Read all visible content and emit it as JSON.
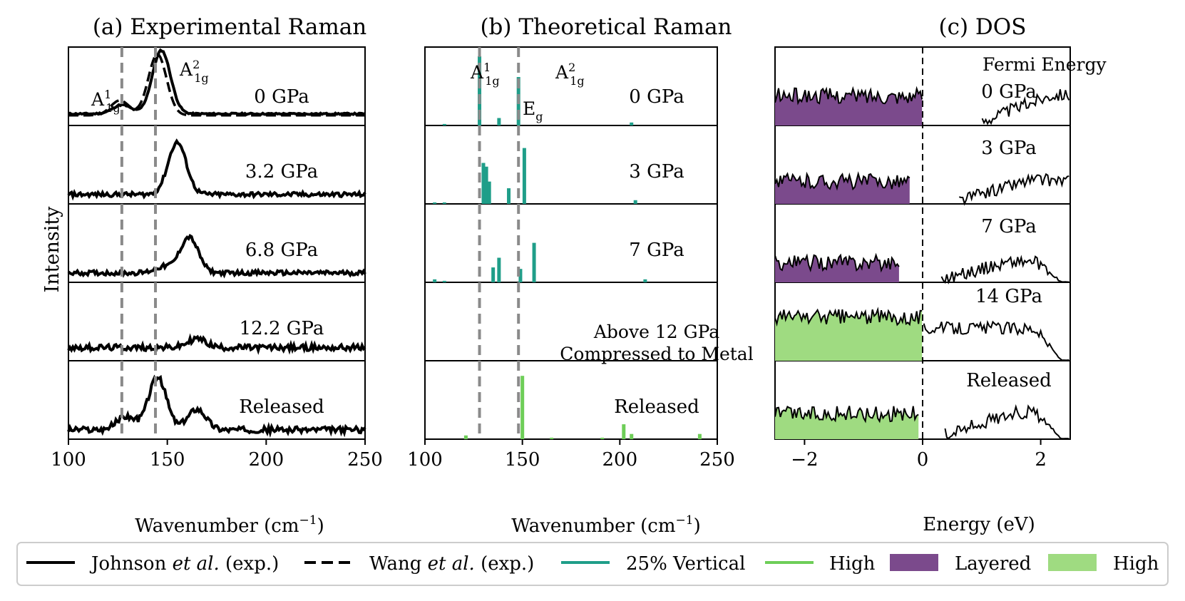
{
  "panels": {
    "a": {
      "title": "(a) Experimental Raman"
    },
    "b": {
      "title": "(b) Theoretical Raman"
    },
    "c": {
      "title": "(c) DOS"
    }
  },
  "axes": {
    "y_label": "Intensity",
    "raman_x_label": "Wavenumber (cm",
    "raman_x_label_sup": "−1",
    "raman_x_label_end": ")",
    "dos_x_label": "Energy (eV)",
    "raman_ticks": [
      "100",
      "150",
      "200",
      "250"
    ],
    "dos_ticks": [
      "−2",
      "0",
      "2"
    ]
  },
  "annotations": {
    "a1g_base": "A",
    "a1g_sup": "1",
    "a2g_sup": "2",
    "a_sub": "1g",
    "eg_base": "E",
    "eg_sub": "g",
    "fermi": "Fermi Energy",
    "metal_line1": "Above 12 GPa",
    "metal_line2": "Compressed to Metal"
  },
  "row_labels": {
    "a": [
      "0 GPa",
      "3.2 GPa",
      "6.8 GPa",
      "12.2 GPa",
      "Released"
    ],
    "b": [
      "0 GPa",
      "3 GPa",
      "7 GPa",
      "",
      "Released"
    ],
    "c": [
      "0 GPa",
      "3 GPa",
      "7 GPa",
      "14 GPa",
      "Released"
    ]
  },
  "legend": {
    "johnson_name": "Johnson ",
    "johnson_etal": "et al.",
    "johnson_tail": " (exp.)",
    "wang_name": "Wang ",
    "wang_etal": "et al.",
    "wang_tail": " (exp.)",
    "vertical": "25% Vertical",
    "high_line": "High",
    "layered": "Layered",
    "high_fill": "High"
  },
  "colors": {
    "vertical": "#1f9e89",
    "high": "#6ece58",
    "layered": "#7b4a8c",
    "high_fill": "#9fdb81",
    "ref_line": "#8a8a8a"
  },
  "chart_data": [
    {
      "type": "line",
      "panel": "a",
      "xlabel": "Wavenumber (cm−1)",
      "ylabel": "Intensity",
      "xlim": [
        100,
        250
      ],
      "reference_lines_x": [
        127,
        144
      ],
      "series": [
        {
          "name": "Johnson et al. (exp.)",
          "condition": "0 GPa",
          "peaks": [
            [
              127,
              0.12
            ],
            [
              147,
              0.85
            ]
          ],
          "noise": 0.01,
          "base": 0.08
        },
        {
          "name": "Wang et al. (exp.)",
          "condition": "0 GPa",
          "peaks": [
            [
              126,
              0.2
            ],
            [
              145,
              0.82
            ]
          ],
          "noise": 0.0,
          "base": 0.06
        },
        {
          "name": "Johnson et al. (exp.)",
          "condition": "3.2 GPa",
          "peaks": [
            [
              155,
              0.7
            ]
          ],
          "noise": 0.03,
          "base": 0.05
        },
        {
          "name": "Johnson et al. (exp.)",
          "condition": "6.8 GPa",
          "peaks": [
            [
              148,
              0.08
            ],
            [
              161,
              0.48
            ]
          ],
          "noise": 0.03,
          "base": 0.05
        },
        {
          "name": "Johnson et al. (exp.)",
          "condition": "12.2 GPa",
          "peaks": [
            [
              165,
              0.12
            ]
          ],
          "noise": 0.04,
          "base": 0.1
        },
        {
          "name": "Johnson et al. (exp.)",
          "condition": "Released",
          "peaks": [
            [
              129,
              0.18
            ],
            [
              145,
              0.7
            ],
            [
              165,
              0.28
            ]
          ],
          "noise": 0.04,
          "base": 0.05
        }
      ]
    },
    {
      "type": "bar",
      "panel": "b",
      "xlabel": "Wavenumber (cm−1)",
      "xlim": [
        100,
        250
      ],
      "reference_lines_x": [
        128,
        148
      ],
      "series": [
        {
          "name": "25% Vertical",
          "condition": "0 GPa",
          "sticks": [
            [
              110,
              0.02
            ],
            [
              128,
              0.93
            ],
            [
              138,
              0.1
            ],
            [
              148,
              0.65
            ],
            [
              206,
              0.04
            ]
          ]
        },
        {
          "name": "25% Vertical",
          "condition": "3 GPa",
          "sticks": [
            [
              105,
              0.02
            ],
            [
              110,
              0.02
            ],
            [
              130,
              0.55
            ],
            [
              131.5,
              0.5
            ],
            [
              133,
              0.3
            ],
            [
              143,
              0.21
            ],
            [
              151,
              0.75
            ],
            [
              208,
              0.05
            ]
          ]
        },
        {
          "name": "25% Vertical",
          "condition": "7 GPa",
          "sticks": [
            [
              105,
              0.04
            ],
            [
              110,
              0.02
            ],
            [
              135,
              0.2
            ],
            [
              138,
              0.33
            ],
            [
              149,
              0.18
            ],
            [
              156,
              0.53
            ],
            [
              213,
              0.04
            ]
          ]
        },
        {
          "name": "High",
          "condition": "Released",
          "sticks": [
            [
              121,
              0.05
            ],
            [
              150,
              0.85
            ],
            [
              165,
              0.02
            ],
            [
              191,
              0.02
            ],
            [
              202,
              0.2
            ],
            [
              206,
              0.07
            ],
            [
              241,
              0.07
            ]
          ]
        }
      ]
    },
    {
      "type": "area",
      "panel": "c",
      "xlabel": "Energy (eV)",
      "xlim": [
        -2.5,
        2.5
      ],
      "reference_lines_x": [
        0
      ],
      "series": [
        {
          "name": "Layered",
          "condition": "0 GPa",
          "gap": [
            0,
            1.0
          ],
          "level": 0.42
        },
        {
          "name": "Layered",
          "condition": "3 GPa",
          "gap": [
            -0.2,
            0.6
          ],
          "level": 0.32
        },
        {
          "name": "Layered",
          "condition": "7 GPa",
          "gap": [
            -0.4,
            0.3
          ],
          "level": 0.28
        },
        {
          "name": "High",
          "condition": "14 GPa",
          "gap": [
            0,
            0
          ],
          "level": 0.62
        },
        {
          "name": "High",
          "condition": "Released",
          "gap": [
            -0.05,
            0.35
          ],
          "level": 0.36
        }
      ]
    }
  ]
}
